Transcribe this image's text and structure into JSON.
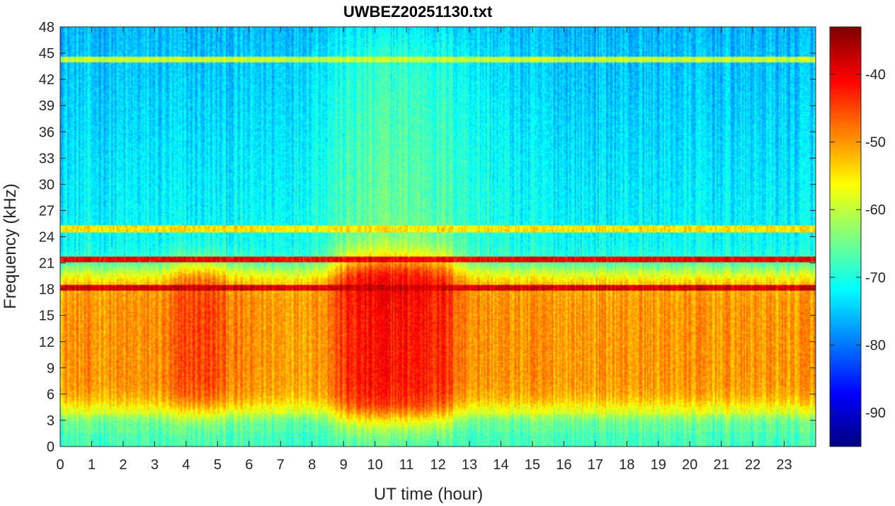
{
  "chart_data": {
    "type": "heatmap",
    "title": "UWBEZ20251130.txt",
    "xlabel": "UT time (hour)",
    "ylabel": "Frequency (kHz)",
    "xlim": [
      0,
      24
    ],
    "ylim": [
      0,
      48
    ],
    "x_ticks": [
      "0",
      "1",
      "2",
      "3",
      "4",
      "5",
      "6",
      "7",
      "8",
      "9",
      "10",
      "11",
      "12",
      "13",
      "14",
      "15",
      "16",
      "17",
      "18",
      "19",
      "20",
      "21",
      "22",
      "23"
    ],
    "y_ticks": [
      "0",
      "3",
      "6",
      "9",
      "12",
      "15",
      "18",
      "21",
      "24",
      "27",
      "30",
      "33",
      "36",
      "39",
      "42",
      "45",
      "48"
    ],
    "colorbar": {
      "colormap": "jet",
      "range": [
        -95,
        -33
      ],
      "ticks": [
        "-90",
        "-80",
        "-70",
        "-60",
        "-50",
        "-40"
      ]
    },
    "features": {
      "background_level_db": -72,
      "noise_band_khz": [
        4,
        20
      ],
      "noise_band_level_db": -50,
      "enhanced_periods_ut": [
        {
          "start": 3.7,
          "end": 5.2,
          "freq_khz": [
            5,
            20
          ],
          "level_db": -44
        },
        {
          "start": 8.8,
          "end": 12.5,
          "freq_khz": [
            3.5,
            21
          ],
          "level_db": -42
        }
      ],
      "transmitter_lines": [
        {
          "freq_khz": 18.2,
          "level_db": -38
        },
        {
          "freq_khz": 21.4,
          "level_db": -40
        },
        {
          "freq_khz": 24.9,
          "level_db": -55
        },
        {
          "freq_khz": 44.3,
          "level_db": -60
        },
        {
          "freq_khz": 4.0,
          "level_db": -58
        },
        {
          "freq_khz": 2.0,
          "level_db": -66
        }
      ]
    }
  }
}
